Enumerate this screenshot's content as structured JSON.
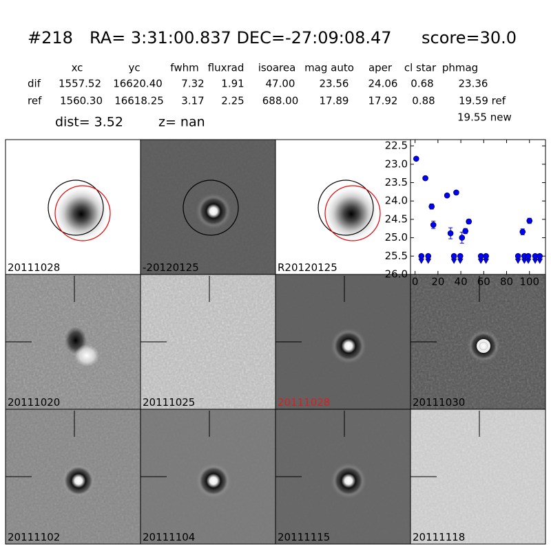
{
  "header": {
    "id": "#218",
    "coords": "RA= 3:31:00.837 DEC=-27:09:08.47",
    "score": "score=30.0"
  },
  "table": {
    "columns": [
      "xc",
      "yc",
      "fwhm",
      "fluxrad",
      "isoarea",
      "mag auto",
      "aper",
      "cl star",
      "phmag"
    ],
    "rows": [
      {
        "label": "dif",
        "cells": [
          "1557.52",
          "16620.40",
          "7.32",
          "1.91",
          "47.00",
          "23.56",
          "24.06",
          "0.68",
          "23.36"
        ]
      },
      {
        "label": "ref",
        "cells": [
          "1560.30",
          "16618.25",
          "3.17",
          "2.25",
          "688.00",
          "17.89",
          "17.92",
          "0.88",
          "19.59 ref"
        ]
      }
    ],
    "extra": "19.55 new"
  },
  "dist": "dist=  3.52",
  "z": "z=   nan",
  "panels": [
    "20111028",
    "-20120125",
    "R20120125",
    null,
    "20111020",
    "20111025",
    "20111028",
    "20111030",
    "20111102",
    "20111104",
    "20111115",
    "20111118"
  ],
  "highlight_panel": 6,
  "highlight_color": "#d62020",
  "chart_data": {
    "type": "scatter",
    "xlim": [
      -4,
      114
    ],
    "ylim": [
      26.0,
      22.33
    ],
    "xticks": [
      0,
      20,
      40,
      60,
      80,
      100
    ],
    "yticks": [
      22.5,
      {
        "value": 23.0,
        "label": "23.0"
      },
      23.5,
      {
        "value": 24.0,
        "label": "24.0"
      },
      24.5,
      {
        "value": 25.0,
        "label": "25.0"
      },
      25.5,
      {
        "value": 26.0,
        "label": "26.0"
      }
    ],
    "series": [
      {
        "color": "#0000ff",
        "marker": "circle",
        "x": [
          1,
          9,
          14.5,
          16,
          28,
          31,
          36,
          41,
          44,
          47,
          94,
          100
        ],
        "values": [
          22.85,
          23.38,
          24.15,
          24.65,
          23.85,
          24.88,
          23.77,
          25.0,
          24.82,
          24.56,
          24.84,
          24.54
        ],
        "errors": [
          0.03,
          0.03,
          0.07,
          0.1,
          0.03,
          0.15,
          0.04,
          0.15,
          0.07,
          0.06,
          0.08,
          0.07
        ]
      },
      {
        "color": "#0000ff",
        "marker": "limit",
        "x": [
          5.5,
          11.5,
          34,
          39.5,
          57.5,
          62,
          90,
          95.5,
          99,
          105,
          109
        ],
        "values": [
          25.5,
          25.5,
          25.5,
          25.5,
          25.5,
          25.5,
          25.5,
          25.5,
          25.5,
          25.5,
          25.5
        ]
      }
    ]
  }
}
